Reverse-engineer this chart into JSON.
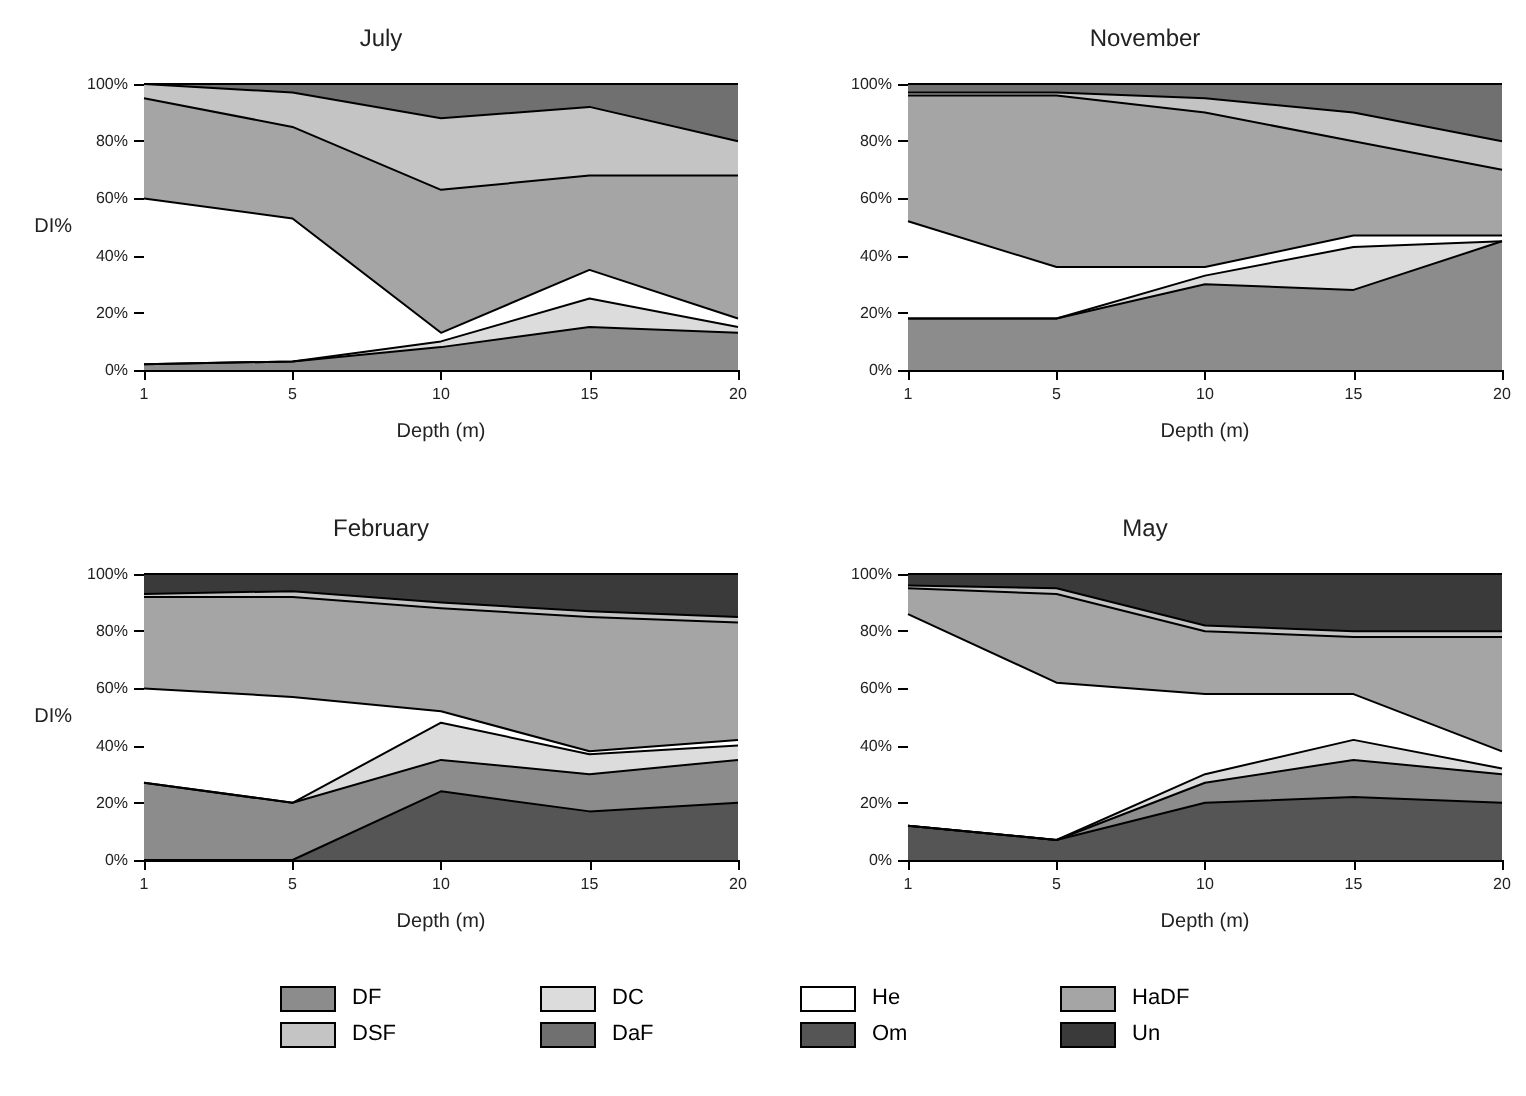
{
  "chart_data": [
    {
      "type": "area",
      "stacked": true,
      "title": "July",
      "xlabel": "Depth (m)",
      "ylabel": "DI%",
      "categories": [
        "1",
        "5",
        "10",
        "15",
        "20"
      ],
      "ylim": [
        0,
        100
      ],
      "yticks": [
        {
          "value": 0,
          "label": "0%"
        },
        {
          "value": 20,
          "label": "20%"
        },
        {
          "value": 40,
          "label": "40%"
        },
        {
          "value": 60,
          "label": "60%"
        },
        {
          "value": 80,
          "label": "80%"
        },
        {
          "value": 100,
          "label": "100%"
        }
      ],
      "legend": "bottom",
      "series": [
        {
          "name": "DF",
          "color": "#8c8c8c",
          "values": [
            2,
            3,
            8,
            15,
            13
          ]
        },
        {
          "name": "DC",
          "color": "#dcdcdc",
          "values": [
            0,
            0,
            2,
            10,
            2
          ]
        },
        {
          "name": "He",
          "color": "#ffffff",
          "values": [
            58,
            50,
            3,
            10,
            3
          ]
        },
        {
          "name": "HaDF",
          "color": "#a5a5a5",
          "values": [
            35,
            32,
            50,
            33,
            50
          ]
        },
        {
          "name": "DSF",
          "color": "#c4c4c4",
          "values": [
            5,
            12,
            25,
            24,
            12
          ]
        },
        {
          "name": "DaF",
          "color": "#707070",
          "values": [
            0,
            3,
            12,
            8,
            20
          ]
        }
      ]
    },
    {
      "type": "area",
      "stacked": true,
      "title": "November",
      "xlabel": "Depth (m)",
      "categories": [
        "1",
        "5",
        "10",
        "15",
        "20"
      ],
      "ylim": [
        0,
        100
      ],
      "yticks": [
        {
          "value": 0,
          "label": "0%"
        },
        {
          "value": 20,
          "label": "20%"
        },
        {
          "value": 40,
          "label": "40%"
        },
        {
          "value": 60,
          "label": "60%"
        },
        {
          "value": 80,
          "label": "80%"
        },
        {
          "value": 100,
          "label": "100%"
        }
      ],
      "legend": "bottom",
      "series": [
        {
          "name": "DF",
          "color": "#8c8c8c",
          "values": [
            18,
            18,
            30,
            28,
            45
          ]
        },
        {
          "name": "DC",
          "color": "#dcdcdc",
          "values": [
            0,
            0,
            3,
            15,
            0
          ]
        },
        {
          "name": "He",
          "color": "#ffffff",
          "values": [
            34,
            18,
            3,
            4,
            2
          ]
        },
        {
          "name": "HaDF",
          "color": "#a5a5a5",
          "values": [
            44,
            60,
            54,
            33,
            23
          ]
        },
        {
          "name": "DSF",
          "color": "#c4c4c4",
          "values": [
            1,
            1,
            5,
            10,
            10
          ]
        },
        {
          "name": "DaF",
          "color": "#707070",
          "values": [
            3,
            3,
            5,
            10,
            20
          ]
        }
      ]
    },
    {
      "type": "area",
      "stacked": true,
      "title": "February",
      "xlabel": "Depth (m)",
      "ylabel": "DI%",
      "categories": [
        "1",
        "5",
        "10",
        "15",
        "20"
      ],
      "ylim": [
        0,
        100
      ],
      "yticks": [
        {
          "value": 0,
          "label": "0%"
        },
        {
          "value": 20,
          "label": "20%"
        },
        {
          "value": 40,
          "label": "40%"
        },
        {
          "value": 60,
          "label": "60%"
        },
        {
          "value": 80,
          "label": "80%"
        },
        {
          "value": 100,
          "label": "100%"
        }
      ],
      "legend": "bottom",
      "series": [
        {
          "name": "Om",
          "color": "#555555",
          "values": [
            0,
            0,
            24,
            17,
            20
          ]
        },
        {
          "name": "DF",
          "color": "#8c8c8c",
          "values": [
            27,
            20,
            11,
            13,
            15
          ]
        },
        {
          "name": "DC",
          "color": "#dcdcdc",
          "values": [
            0,
            0,
            13,
            7,
            5
          ]
        },
        {
          "name": "He",
          "color": "#ffffff",
          "values": [
            33,
            37,
            4,
            1,
            2
          ]
        },
        {
          "name": "HaDF",
          "color": "#a5a5a5",
          "values": [
            32,
            35,
            36,
            47,
            41
          ]
        },
        {
          "name": "DSF",
          "color": "#c4c4c4",
          "values": [
            1,
            2,
            2,
            2,
            2
          ]
        },
        {
          "name": "Un",
          "color": "#3a3a3a",
          "values": [
            7,
            6,
            10,
            13,
            15
          ]
        }
      ]
    },
    {
      "type": "area",
      "stacked": true,
      "title": "May",
      "xlabel": "Depth (m)",
      "categories": [
        "1",
        "5",
        "10",
        "15",
        "20"
      ],
      "ylim": [
        0,
        100
      ],
      "yticks": [
        {
          "value": 0,
          "label": "0%"
        },
        {
          "value": 20,
          "label": "20%"
        },
        {
          "value": 40,
          "label": "40%"
        },
        {
          "value": 60,
          "label": "60%"
        },
        {
          "value": 80,
          "label": "80%"
        },
        {
          "value": 100,
          "label": "100%"
        }
      ],
      "legend": "bottom",
      "series": [
        {
          "name": "Om",
          "color": "#555555",
          "values": [
            12,
            7,
            20,
            22,
            20
          ]
        },
        {
          "name": "DF",
          "color": "#8c8c8c",
          "values": [
            0,
            0,
            7,
            13,
            10
          ]
        },
        {
          "name": "DC",
          "color": "#dcdcdc",
          "values": [
            0,
            0,
            3,
            7,
            2
          ]
        },
        {
          "name": "He",
          "color": "#ffffff",
          "values": [
            74,
            55,
            28,
            16,
            6
          ]
        },
        {
          "name": "HaDF",
          "color": "#a5a5a5",
          "values": [
            9,
            31,
            22,
            20,
            40
          ]
        },
        {
          "name": "DSF",
          "color": "#c4c4c4",
          "values": [
            1,
            2,
            2,
            2,
            2
          ]
        },
        {
          "name": "Un",
          "color": "#3a3a3a",
          "values": [
            4,
            5,
            18,
            20,
            20
          ]
        }
      ]
    }
  ]
}
